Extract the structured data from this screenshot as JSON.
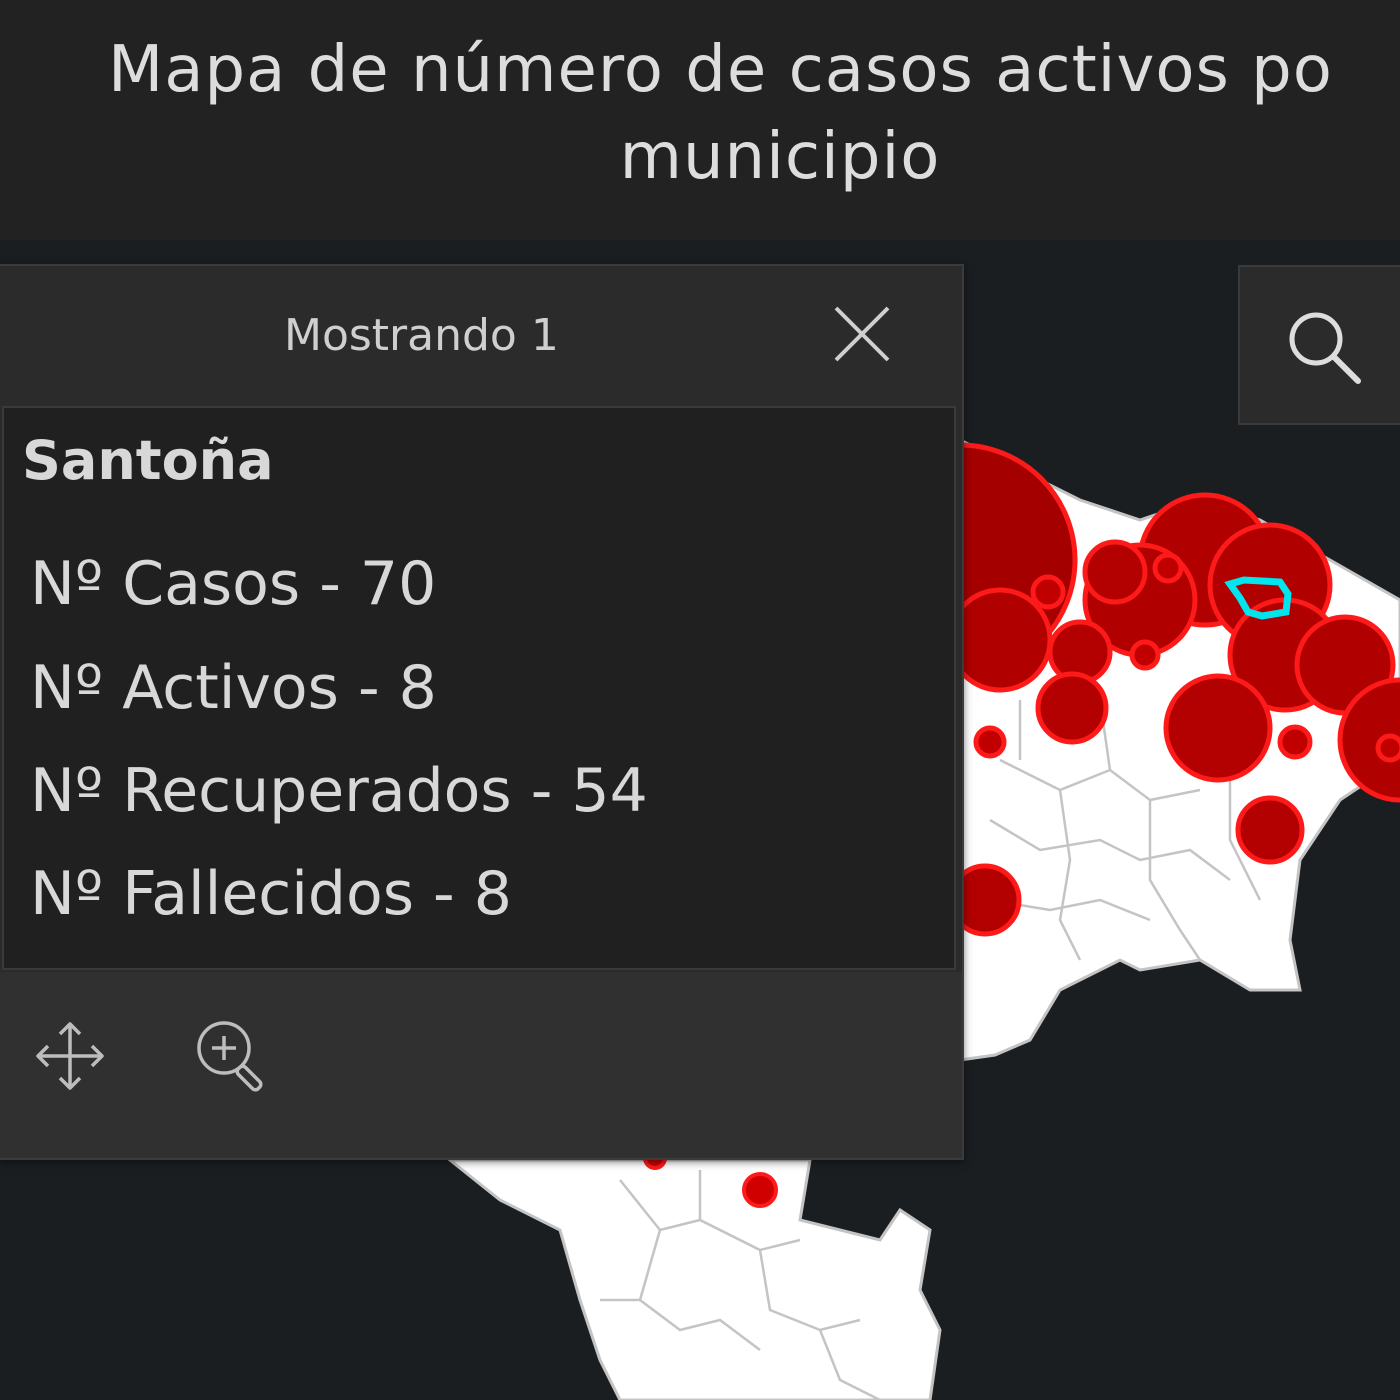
{
  "header": {
    "title_line1": "Mapa de número de casos activos po",
    "title_line2": "municipio"
  },
  "popup": {
    "count_label": "Mostrando 1",
    "feature_title": "Santoña",
    "fields": [
      "Nº Casos - 70",
      "Nº Activos - 8",
      "Nº Recuperados - 54",
      "Nº Fallecidos - 8"
    ],
    "actions": [
      {
        "icon": "move-icon"
      },
      {
        "icon": "zoom-in-icon"
      }
    ],
    "close_icon": "close-icon"
  },
  "map": {
    "land_color": "#ffffff",
    "boundary_color": "#c4c4c4",
    "circle_fill": "#b30000",
    "circle_stroke": "#ff1a1a",
    "highlight_color": "#00e5ee",
    "background": "#1b1e21"
  },
  "search": {
    "icon": "search-icon"
  }
}
